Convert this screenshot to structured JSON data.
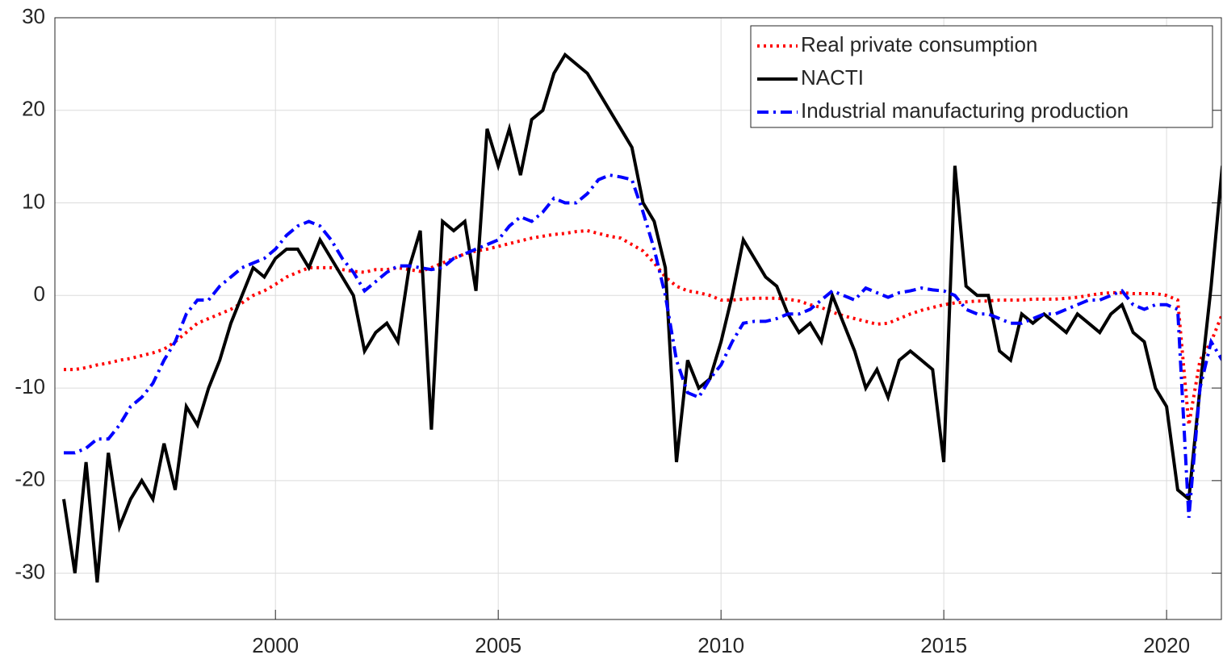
{
  "chart_data": {
    "type": "line",
    "x": [
      1995.25,
      1995.5,
      1995.75,
      1996,
      1996.25,
      1996.5,
      1996.75,
      1997,
      1997.25,
      1997.5,
      1997.75,
      1998,
      1998.25,
      1998.5,
      1998.75,
      1999,
      1999.25,
      1999.5,
      1999.75,
      2000,
      2000.25,
      2000.5,
      2000.75,
      2001,
      2001.25,
      2001.5,
      2001.75,
      2002,
      2002.25,
      2002.5,
      2002.75,
      2003,
      2003.25,
      2003.5,
      2003.75,
      2004,
      2004.25,
      2004.5,
      2004.75,
      2005,
      2005.25,
      2005.5,
      2005.75,
      2006,
      2006.25,
      2006.5,
      2006.75,
      2007,
      2007.25,
      2007.5,
      2007.75,
      2008,
      2008.25,
      2008.5,
      2008.75,
      2009,
      2009.25,
      2009.5,
      2009.75,
      2010,
      2010.25,
      2010.5,
      2010.75,
      2011,
      2011.25,
      2011.5,
      2011.75,
      2012,
      2012.25,
      2012.5,
      2012.75,
      2013,
      2013.25,
      2013.5,
      2013.75,
      2014,
      2014.25,
      2014.5,
      2014.75,
      2015,
      2015.25,
      2015.5,
      2015.75,
      2016,
      2016.25,
      2016.5,
      2016.75,
      2017,
      2017.25,
      2017.5,
      2017.75,
      2018,
      2018.25,
      2018.5,
      2018.75,
      2019,
      2019.25,
      2019.5,
      2019.75,
      2020,
      2020.25,
      2020.5,
      2020.75,
      2021,
      2021.25
    ],
    "series": [
      {
        "name": "Real private consumption",
        "color": "#ff0000",
        "linestyle": "dotted",
        "values": [
          -8,
          -8,
          -7.8,
          -7.5,
          -7.3,
          -7,
          -6.8,
          -6.5,
          -6.2,
          -5.8,
          -5,
          -4,
          -3,
          -2.5,
          -2,
          -1.5,
          -0.8,
          0,
          0.5,
          1.2,
          2,
          2.5,
          3,
          3,
          3,
          2.8,
          2.6,
          2.5,
          2.8,
          2.8,
          3,
          2.8,
          2.6,
          3,
          3.5,
          4,
          4.5,
          4.8,
          5,
          5.3,
          5.6,
          5.9,
          6.2,
          6.4,
          6.6,
          6.7,
          6.9,
          7,
          6.7,
          6.4,
          6.2,
          5.5,
          4.8,
          3.5,
          2,
          1,
          0.5,
          0.3,
          0,
          -0.5,
          -0.5,
          -0.4,
          -0.3,
          -0.3,
          -0.3,
          -0.4,
          -0.6,
          -1,
          -1.3,
          -1.8,
          -2.2,
          -2.5,
          -2.8,
          -3.1,
          -3,
          -2.5,
          -2,
          -1.6,
          -1.3,
          -1,
          -0.8,
          -0.7,
          -0.6,
          -0.6,
          -0.5,
          -0.5,
          -0.5,
          -0.4,
          -0.4,
          -0.4,
          -0.3,
          -0.2,
          0,
          0.2,
          0.3,
          0.3,
          0.2,
          0.2,
          0.2,
          0,
          -0.5,
          -14,
          -7,
          -5,
          -2
        ]
      },
      {
        "name": "NACTI",
        "color": "#000000",
        "linestyle": "solid",
        "values": [
          -22,
          -30,
          -18,
          -31,
          -17,
          -25,
          -22,
          -20,
          -22,
          -16,
          -21,
          -12,
          -14,
          -10,
          -7,
          -3,
          0,
          3,
          2,
          4,
          5,
          5,
          3,
          6,
          4,
          2,
          0,
          -6,
          -4,
          -3,
          -5,
          3,
          7,
          -14.5,
          8,
          7,
          8,
          0.5,
          18,
          14,
          18,
          13,
          19,
          20,
          24,
          26,
          25,
          24,
          22,
          20,
          18,
          16,
          10,
          8,
          3,
          -18,
          -7,
          -10,
          -9,
          -5,
          0,
          6,
          4,
          2,
          1,
          -2,
          -4,
          -3,
          -5,
          0,
          -3,
          -6,
          -10,
          -8,
          -11,
          -7,
          -6,
          -7,
          -8,
          -18,
          14,
          1,
          0,
          0,
          -6,
          -7,
          -2,
          -3,
          -2,
          -3,
          -4,
          -2,
          -3,
          -4,
          -2,
          -1,
          -4,
          -5,
          -10,
          -12,
          -21,
          -22,
          -10,
          1,
          14
        ]
      },
      {
        "name": "Industrial manufacturing production",
        "color": "#0000ff",
        "linestyle": "dashdot",
        "values": [
          -17,
          -17,
          -16.5,
          -15.5,
          -15.5,
          -14,
          -12,
          -11,
          -9.5,
          -7,
          -5,
          -2,
          -0.5,
          -0.5,
          1,
          2,
          3,
          3.5,
          4,
          5,
          6.5,
          7.5,
          8,
          7.5,
          6,
          4,
          2.5,
          0.5,
          1.5,
          2.5,
          3.2,
          3.2,
          3,
          2.8,
          3,
          4,
          4.5,
          5,
          5.5,
          6,
          7.5,
          8.5,
          8,
          9,
          10.5,
          10,
          10,
          11,
          12.5,
          13,
          12.8,
          12.5,
          9,
          5,
          0,
          -7,
          -10.5,
          -11,
          -9,
          -7.5,
          -5,
          -3,
          -2.8,
          -2.8,
          -2.5,
          -2,
          -2,
          -1.5,
          -0.5,
          0.5,
          0,
          -0.5,
          0.8,
          0.3,
          -0.2,
          0.3,
          0.5,
          0.8,
          0.6,
          0.5,
          0,
          -1.5,
          -2,
          -2,
          -2.5,
          -3,
          -3,
          -2.5,
          -2,
          -2,
          -1.5,
          -1,
          -0.5,
          -0.5,
          0,
          0.5,
          -1,
          -1.5,
          -1,
          -1,
          -1.5,
          -24,
          -10,
          -5,
          -7
        ]
      }
    ],
    "xlim": [
      1995.05,
      2021.23
    ],
    "xticks": [
      2000,
      2005,
      2010,
      2015,
      2020
    ],
    "ylim": [
      -35,
      30
    ],
    "yticks": [
      -30,
      -20,
      -10,
      0,
      10,
      20,
      30
    ],
    "grid": true,
    "legend": "top-right"
  }
}
